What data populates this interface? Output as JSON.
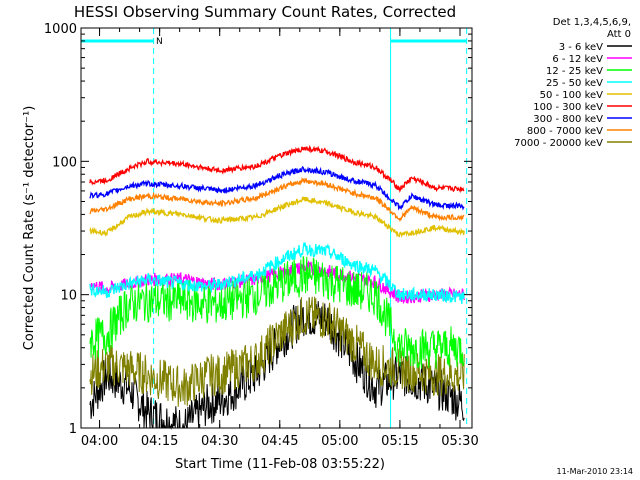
{
  "chart_data": {
    "type": "line",
    "title": "HESSI Observing Summary Count Rates, Corrected",
    "xlabel": "Start Time (11-Feb-08 03:55:22)",
    "ylabel": "Corrected Count Rate (s⁻¹ detector⁻¹)",
    "y_scale": "log",
    "ylim": [
      1,
      1000
    ],
    "xlim": [
      "03:55:22",
      "05:33:00"
    ],
    "x_ticks": [
      "04:00",
      "04:15",
      "04:30",
      "04:45",
      "05:00",
      "05:15",
      "05:30"
    ],
    "y_ticks": [
      "1",
      "10",
      "100",
      "1000"
    ],
    "legend_header": [
      "Det 1,3,4,5,6,9,",
      "Att 0"
    ],
    "legend_position": "outside-right",
    "flag_marker": "N",
    "timestamp": "11-Mar-2010 23:14",
    "markers": {
      "vertical_lines": [
        "03:55:22",
        "05:12:40"
      ],
      "dashed_lines": [
        "04:13:30",
        "05:31:40"
      ],
      "flag_bars": [
        [
          "03:55:22",
          "04:13:30"
        ],
        [
          "05:12:40",
          "05:31:40"
        ]
      ]
    },
    "series": [
      {
        "name": "3 - 6 keV",
        "color": "#000000",
        "values": [
          [
            3.96,
            1.5
          ],
          [
            4.03,
            2.5
          ],
          [
            4.12,
            2
          ],
          [
            4.2,
            1.3
          ],
          [
            4.35,
            1
          ],
          [
            4.45,
            1.5
          ],
          [
            4.5,
            1.6
          ],
          [
            4.65,
            2.5
          ],
          [
            4.75,
            4.5
          ],
          [
            4.85,
            7
          ],
          [
            4.95,
            6.5
          ],
          [
            5.05,
            3.5
          ],
          [
            5.15,
            2
          ],
          [
            5.25,
            2.5
          ],
          [
            5.4,
            2
          ],
          [
            5.52,
            1.5
          ]
        ]
      },
      {
        "name": "6 - 12 keV",
        "color": "#ff00ff",
        "values": [
          [
            3.96,
            12
          ],
          [
            4.03,
            11
          ],
          [
            4.12,
            12
          ],
          [
            4.2,
            13
          ],
          [
            4.35,
            13
          ],
          [
            4.45,
            12
          ],
          [
            4.5,
            12
          ],
          [
            4.65,
            13
          ],
          [
            4.75,
            14.5
          ],
          [
            4.85,
            16
          ],
          [
            4.95,
            15
          ],
          [
            5.05,
            13.5
          ],
          [
            5.15,
            12.5
          ],
          [
            5.25,
            9.5
          ],
          [
            5.4,
            10
          ],
          [
            5.52,
            10
          ]
        ]
      },
      {
        "name": "12 - 25 keV",
        "color": "#00ff00",
        "values": [
          [
            3.96,
            4.5
          ],
          [
            4.03,
            5
          ],
          [
            4.12,
            8.5
          ],
          [
            4.2,
            9
          ],
          [
            4.35,
            9
          ],
          [
            4.45,
            8.5
          ],
          [
            4.5,
            8.5
          ],
          [
            4.65,
            10
          ],
          [
            4.75,
            12
          ],
          [
            4.85,
            14
          ],
          [
            4.95,
            13
          ],
          [
            5.05,
            11
          ],
          [
            5.15,
            10
          ],
          [
            5.25,
            4
          ],
          [
            5.4,
            4
          ],
          [
            5.52,
            4
          ]
        ]
      },
      {
        "name": "25 - 50 keV",
        "color": "#00ffff",
        "values": [
          [
            3.96,
            11
          ],
          [
            4.03,
            10.5
          ],
          [
            4.12,
            12
          ],
          [
            4.2,
            13
          ],
          [
            4.35,
            12
          ],
          [
            4.45,
            11.5
          ],
          [
            4.5,
            12
          ],
          [
            4.65,
            14
          ],
          [
            4.75,
            18
          ],
          [
            4.85,
            22
          ],
          [
            4.95,
            21
          ],
          [
            5.05,
            17
          ],
          [
            5.15,
            15
          ],
          [
            5.25,
            10
          ],
          [
            5.4,
            10
          ],
          [
            5.52,
            9.5
          ]
        ]
      },
      {
        "name": "50 - 100 keV",
        "color": "#e0c000",
        "values": [
          [
            3.96,
            30
          ],
          [
            4.03,
            29
          ],
          [
            4.12,
            38
          ],
          [
            4.2,
            42
          ],
          [
            4.35,
            40
          ],
          [
            4.45,
            37
          ],
          [
            4.5,
            36
          ],
          [
            4.65,
            38
          ],
          [
            4.75,
            45
          ],
          [
            4.85,
            52
          ],
          [
            4.95,
            48
          ],
          [
            5.05,
            42
          ],
          [
            5.15,
            38
          ],
          [
            5.25,
            28
          ],
          [
            5.4,
            32
          ],
          [
            5.52,
            29
          ]
        ]
      },
      {
        "name": "100 - 300 keV",
        "color": "#ff0000",
        "values": [
          [
            3.96,
            70
          ],
          [
            4.03,
            72
          ],
          [
            4.12,
            88
          ],
          [
            4.2,
            100
          ],
          [
            4.35,
            95
          ],
          [
            4.45,
            88
          ],
          [
            4.5,
            85
          ],
          [
            4.65,
            92
          ],
          [
            4.75,
            110
          ],
          [
            4.85,
            125
          ],
          [
            4.95,
            118
          ],
          [
            5.05,
            100
          ],
          [
            5.15,
            90
          ],
          [
            5.25,
            62
          ],
          [
            5.3,
            75
          ],
          [
            5.4,
            63
          ],
          [
            5.52,
            62
          ]
        ]
      },
      {
        "name": "300 - 800 keV",
        "color": "#0000ff",
        "values": [
          [
            3.96,
            55
          ],
          [
            4.03,
            57
          ],
          [
            4.12,
            65
          ],
          [
            4.2,
            68
          ],
          [
            4.35,
            65
          ],
          [
            4.45,
            62
          ],
          [
            4.5,
            60
          ],
          [
            4.65,
            66
          ],
          [
            4.75,
            78
          ],
          [
            4.85,
            88
          ],
          [
            4.95,
            82
          ],
          [
            5.05,
            72
          ],
          [
            5.15,
            66
          ],
          [
            5.25,
            45
          ],
          [
            5.3,
            55
          ],
          [
            5.4,
            47
          ],
          [
            5.52,
            46
          ]
        ]
      },
      {
        "name": "800 - 7000 keV",
        "color": "#ff8000",
        "values": [
          [
            3.96,
            42
          ],
          [
            4.03,
            44
          ],
          [
            4.12,
            52
          ],
          [
            4.2,
            55
          ],
          [
            4.35,
            52
          ],
          [
            4.45,
            49
          ],
          [
            4.5,
            48
          ],
          [
            4.65,
            53
          ],
          [
            4.75,
            63
          ],
          [
            4.85,
            72
          ],
          [
            4.95,
            67
          ],
          [
            5.05,
            58
          ],
          [
            5.15,
            53
          ],
          [
            5.25,
            37
          ],
          [
            5.3,
            45
          ],
          [
            5.4,
            38
          ],
          [
            5.52,
            38
          ]
        ]
      },
      {
        "name": "7000 - 20000 keV",
        "color": "#808000",
        "values": [
          [
            3.96,
            2.5
          ],
          [
            4.03,
            3
          ],
          [
            4.12,
            2.8
          ],
          [
            4.2,
            2.5
          ],
          [
            4.35,
            2
          ],
          [
            4.45,
            2.5
          ],
          [
            4.5,
            2.5
          ],
          [
            4.65,
            3.2
          ],
          [
            4.75,
            5
          ],
          [
            4.85,
            7
          ],
          [
            4.95,
            6.5
          ],
          [
            5.05,
            4.5
          ],
          [
            5.15,
            3
          ],
          [
            5.25,
            2.8
          ],
          [
            5.4,
            2.5
          ],
          [
            5.52,
            2.5
          ]
        ]
      }
    ]
  }
}
